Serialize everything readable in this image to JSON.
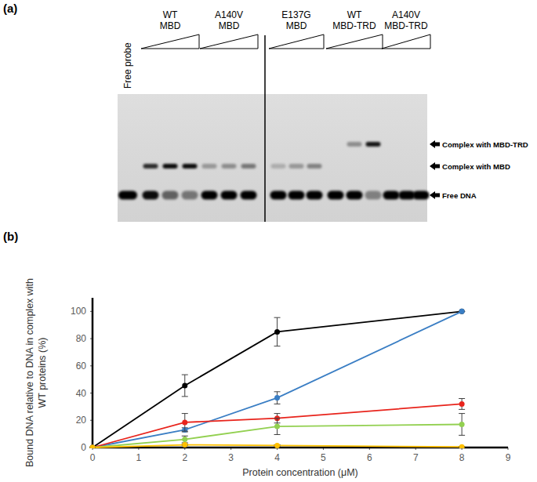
{
  "panel_a": {
    "label": "(a)",
    "free_lane": {
      "label": "Free probe",
      "free": 1.0
    },
    "band_labels": [
      "Complex with MBD-TRD",
      "Complex with MBD",
      "Free DNA"
    ],
    "groups": [
      {
        "label": [
          "WT",
          "MBD"
        ],
        "complex_band": 1,
        "lanes": [
          {
            "free": 0.95,
            "complex": 0.8
          },
          {
            "free": 0.55,
            "complex": 0.95
          },
          {
            "free": 0.45,
            "complex": 0.95
          }
        ]
      },
      {
        "label": [
          "A140V",
          "MBD"
        ],
        "complex_band": 1,
        "lanes": [
          {
            "free": 1.0,
            "complex": 0.3
          },
          {
            "free": 1.0,
            "complex": 0.35
          },
          {
            "free": 1.0,
            "complex": 0.45
          }
        ]
      },
      {
        "label": [
          "E137G",
          "MBD"
        ],
        "complex_band": 1,
        "lanes": [
          {
            "free": 1.0,
            "complex": 0.2
          },
          {
            "free": 1.0,
            "complex": 0.3
          },
          {
            "free": 1.0,
            "complex": 0.4
          }
        ]
      },
      {
        "label": [
          "WT",
          "MBD-TRD"
        ],
        "complex_band": 0,
        "lanes": [
          {
            "free": 1.0,
            "complex": 0.0
          },
          {
            "free": 1.0,
            "complex": 0.35
          },
          {
            "free": 0.4,
            "complex": 0.9
          }
        ]
      },
      {
        "label": [
          "A140V",
          "MBD-TRD"
        ],
        "complex_band": 0,
        "lanes": [
          {
            "free": 1.0,
            "complex": 0.0
          },
          {
            "free": 1.0,
            "complex": 0.0
          },
          {
            "free": 1.0,
            "complex": 0.0
          }
        ]
      }
    ]
  },
  "panel_b_label": "(b)",
  "chart_data": {
    "type": "line",
    "x_label": "Protein concentration (μM)",
    "y_label": "Bound DNA relative to DNA in complex with\nWT proteins (%)",
    "x": [
      0,
      2,
      4,
      8
    ],
    "xlim": [
      0,
      9
    ],
    "xticks": [
      0,
      1,
      2,
      3,
      4,
      5,
      6,
      7,
      8,
      9
    ],
    "ylim": [
      0,
      110
    ],
    "yticks": [
      0,
      20,
      40,
      60,
      80,
      100
    ],
    "grid": false,
    "marker": "circle",
    "series": [
      {
        "color": "#000000",
        "values": [
          0,
          45.5,
          85,
          100
        ],
        "errors": [
          0,
          8,
          10.5,
          0
        ]
      },
      {
        "color": "#3a7ec4",
        "values": [
          0,
          13,
          36.5,
          100
        ],
        "errors": [
          0,
          1.5,
          4.5,
          0
        ]
      },
      {
        "color": "#e8241c",
        "values": [
          0,
          18.5,
          21.5,
          32
        ],
        "errors": [
          0,
          6.5,
          3.5,
          4
        ]
      },
      {
        "color": "#92d050",
        "values": [
          0,
          6,
          15.5,
          17
        ],
        "errors": [
          0,
          2.5,
          6,
          8
        ]
      },
      {
        "color": "#ffc000",
        "values": [
          0,
          2,
          1.5,
          0.5
        ],
        "errors": [
          0,
          0.5,
          0.5,
          0.3
        ]
      }
    ]
  }
}
